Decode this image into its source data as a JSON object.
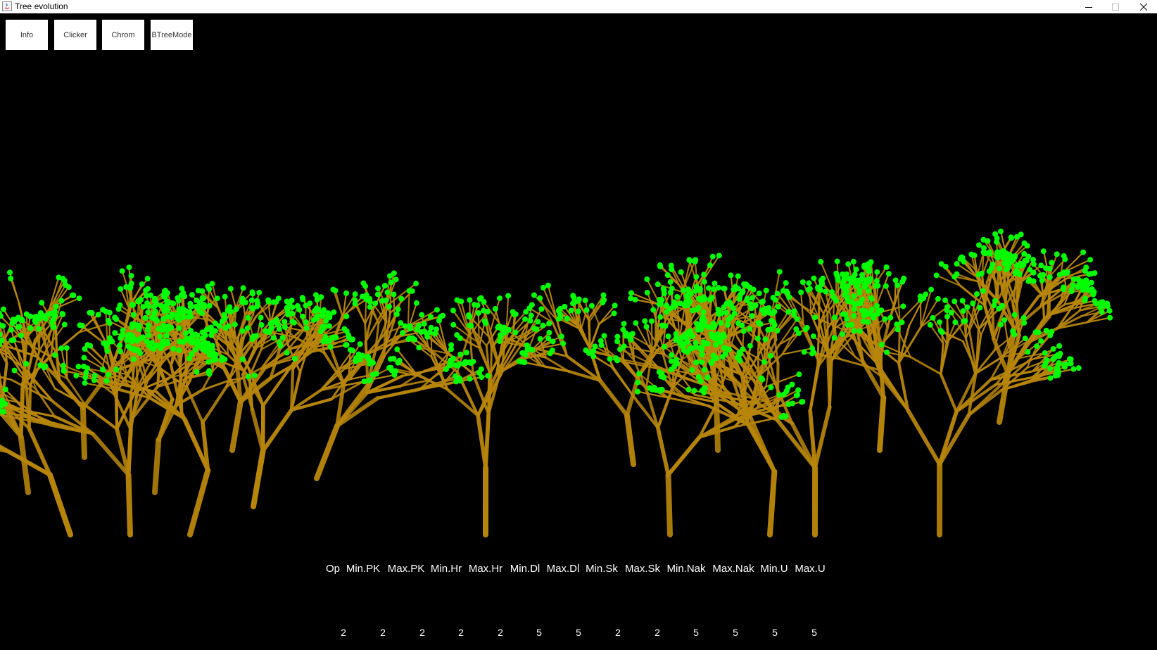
{
  "window": {
    "title": "Tree evolution",
    "controls": {
      "minimize": "minimize-icon",
      "maximize": "maximize-icon",
      "close": "close-icon"
    }
  },
  "toolbar": {
    "buttons": [
      {
        "label": "Info"
      },
      {
        "label": "Clicker"
      },
      {
        "label": "Chrom"
      },
      {
        "label": "BTreeMode"
      }
    ]
  },
  "scene": {
    "background_color": "#000000",
    "branch_color": "#b8860b",
    "leaf_color": "#00ff00"
  },
  "parameters": {
    "labels": [
      "Op",
      "Min.PK",
      "Max.PK",
      "Min.Hr",
      "Max.Hr",
      "Min.Dl",
      "Max.Dl",
      "Min.Sk",
      "Max.Sk",
      "Min.Nak",
      "Max.Nak",
      "Min.U",
      "Max.U"
    ],
    "values": [
      "2",
      "2",
      "2",
      "2",
      "2",
      "5",
      "5",
      "2",
      "2",
      "5",
      "5",
      "5",
      "5"
    ]
  }
}
